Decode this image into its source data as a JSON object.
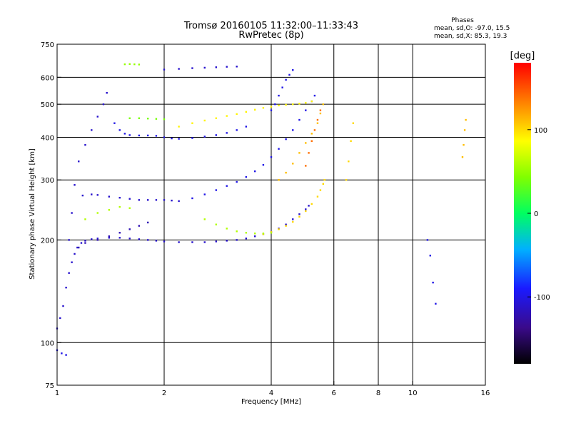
{
  "header": {
    "title_line1": "Tromsø 20160105 11:32:00–11:33:43",
    "title_line2": "RwPretec (8p)"
  },
  "stats": {
    "heading": "Phases",
    "line_o": "mean, sd,O: -97.0, 15.5",
    "line_x": "mean, sd,X:  85.3, 19.3"
  },
  "colorbar": {
    "label": "[deg]",
    "ticks": [
      {
        "value": 100,
        "label": "100"
      },
      {
        "value": 0,
        "label": "0"
      },
      {
        "value": -100,
        "label": "-100"
      }
    ],
    "range": [
      -180,
      180
    ]
  },
  "chart_data": {
    "type": "scatter",
    "title": "Tromsø 20160105 11:32:00–11:33:43",
    "subtitle": "RwPretec (8p)",
    "xlabel": "Frequency [MHz]",
    "ylabel": "Stationary phase Virtual Height [km]",
    "xscale": "log",
    "yscale": "log",
    "xlim": [
      1,
      16
    ],
    "ylim": [
      75,
      750
    ],
    "grid": true,
    "xticks": [
      {
        "value": 1,
        "label": "1"
      },
      {
        "value": 2,
        "label": "2"
      },
      {
        "value": 4,
        "label": "4"
      },
      {
        "value": 6,
        "label": "6"
      },
      {
        "value": 8,
        "label": "8"
      },
      {
        "value": 10,
        "label": "10"
      },
      {
        "value": 16,
        "label": "16"
      }
    ],
    "yticks": [
      {
        "value": 75,
        "label": "75"
      },
      {
        "value": 100,
        "label": "100"
      },
      {
        "value": 200,
        "label": "200"
      },
      {
        "value": 300,
        "label": "300"
      },
      {
        "value": 400,
        "label": "400"
      },
      {
        "value": 500,
        "label": "500"
      },
      {
        "value": 600,
        "label": "600"
      },
      {
        "value": 750,
        "label": "750"
      }
    ],
    "xgrid": [
      1,
      2,
      4,
      6,
      8,
      10
    ],
    "ygrid": [
      100,
      200,
      300,
      400,
      500,
      600
    ],
    "color_variable": "phase [deg]",
    "traces": [
      {
        "phase": -110,
        "points": [
          [
            1.0,
            110
          ],
          [
            1.02,
            118
          ],
          [
            1.04,
            128
          ],
          [
            1.06,
            145
          ],
          [
            1.08,
            160
          ],
          [
            1.1,
            172
          ],
          [
            1.12,
            182
          ],
          [
            1.14,
            190
          ],
          [
            1.17,
            196
          ],
          [
            1.2,
            199
          ],
          [
            1.25,
            201
          ],
          [
            1.3,
            202
          ],
          [
            1.4,
            203
          ],
          [
            1.5,
            203
          ],
          [
            1.6,
            202
          ],
          [
            1.7,
            201
          ],
          [
            1.8,
            200
          ],
          [
            1.9,
            199
          ],
          [
            2.0,
            198
          ],
          [
            2.2,
            197
          ],
          [
            2.4,
            197
          ],
          [
            2.6,
            197
          ],
          [
            2.8,
            198
          ],
          [
            3.0,
            199
          ],
          [
            3.2,
            200
          ],
          [
            3.4,
            202
          ],
          [
            3.6,
            205
          ],
          [
            3.8,
            208
          ],
          [
            4.0,
            211
          ],
          [
            4.2,
            216
          ],
          [
            4.4,
            222
          ],
          [
            4.6,
            230
          ],
          [
            4.8,
            238
          ],
          [
            5.0,
            246
          ],
          [
            5.1,
            252
          ]
        ]
      },
      {
        "phase": 100,
        "points": [
          [
            3.8,
            208
          ],
          [
            4.0,
            211
          ],
          [
            4.2,
            215
          ],
          [
            4.4,
            220
          ],
          [
            4.6,
            226
          ],
          [
            4.8,
            234
          ],
          [
            5.0,
            243
          ],
          [
            5.2,
            255
          ],
          [
            5.4,
            268
          ],
          [
            5.5,
            280
          ],
          [
            5.6,
            292
          ],
          [
            5.65,
            300
          ]
        ]
      },
      {
        "phase": 60,
        "points": [
          [
            2.6,
            230
          ],
          [
            2.8,
            222
          ],
          [
            3.0,
            216
          ],
          [
            3.2,
            212
          ],
          [
            3.4,
            210
          ],
          [
            3.6,
            209
          ],
          [
            3.8,
            209
          ],
          [
            4.0,
            210
          ]
        ]
      },
      {
        "phase": -100,
        "points": [
          [
            2.4,
            265
          ],
          [
            2.6,
            272
          ],
          [
            2.8,
            280
          ],
          [
            3.0,
            288
          ],
          [
            3.2,
            296
          ],
          [
            3.4,
            306
          ],
          [
            3.6,
            318
          ],
          [
            3.8,
            332
          ],
          [
            4.0,
            350
          ],
          [
            4.2,
            370
          ],
          [
            4.4,
            395
          ],
          [
            4.6,
            420
          ],
          [
            4.8,
            450
          ],
          [
            5.0,
            480
          ],
          [
            5.2,
            510
          ],
          [
            5.3,
            530
          ]
        ]
      },
      {
        "phase": -100,
        "points": [
          [
            4.0,
            480
          ],
          [
            4.1,
            500
          ],
          [
            4.2,
            530
          ],
          [
            4.3,
            560
          ],
          [
            4.4,
            590
          ],
          [
            4.5,
            610
          ],
          [
            4.6,
            630
          ]
        ]
      },
      {
        "phase": 110,
        "points": [
          [
            4.2,
            300
          ],
          [
            4.4,
            315
          ],
          [
            4.6,
            335
          ],
          [
            4.8,
            360
          ],
          [
            5.0,
            385
          ],
          [
            5.2,
            410
          ],
          [
            5.4,
            440
          ],
          [
            5.5,
            470
          ],
          [
            5.6,
            500
          ]
        ]
      },
      {
        "phase": 140,
        "points": [
          [
            5.0,
            330
          ],
          [
            5.1,
            360
          ],
          [
            5.2,
            390
          ],
          [
            5.3,
            420
          ],
          [
            5.4,
            450
          ],
          [
            5.5,
            480
          ]
        ]
      },
      {
        "phase": 90,
        "points": [
          [
            2.2,
            430
          ],
          [
            2.4,
            440
          ],
          [
            2.6,
            448
          ],
          [
            2.8,
            455
          ],
          [
            3.0,
            462
          ],
          [
            3.2,
            468
          ],
          [
            3.4,
            475
          ],
          [
            3.6,
            482
          ],
          [
            3.8,
            488
          ],
          [
            4.0,
            492
          ],
          [
            4.2,
            496
          ],
          [
            4.4,
            498
          ],
          [
            4.6,
            500
          ],
          [
            4.8,
            502
          ],
          [
            5.0,
            505
          ],
          [
            5.2,
            510
          ]
        ]
      },
      {
        "phase": -100,
        "points": [
          [
            1.45,
            440
          ],
          [
            1.5,
            420
          ],
          [
            1.55,
            410
          ],
          [
            1.6,
            406
          ],
          [
            1.7,
            405
          ],
          [
            1.8,
            405
          ],
          [
            1.9,
            404
          ],
          [
            2.0,
            400
          ],
          [
            2.1,
            397
          ],
          [
            2.2,
            396
          ],
          [
            2.4,
            398
          ],
          [
            2.6,
            402
          ],
          [
            2.8,
            406
          ],
          [
            3.0,
            412
          ],
          [
            3.2,
            420
          ],
          [
            3.4,
            430
          ]
        ]
      },
      {
        "phase": 40,
        "points": [
          [
            1.6,
            455
          ],
          [
            1.7,
            455
          ],
          [
            1.8,
            454
          ],
          [
            1.9,
            453
          ],
          [
            2.0,
            452
          ]
        ]
      },
      {
        "phase": -110,
        "points": [
          [
            2.0,
            632
          ],
          [
            2.2,
            635
          ],
          [
            2.4,
            638
          ],
          [
            2.6,
            640
          ],
          [
            2.8,
            642
          ],
          [
            3.0,
            644
          ],
          [
            3.2,
            645
          ]
        ]
      },
      {
        "phase": -110,
        "points": [
          [
            1.08,
            200
          ],
          [
            1.1,
            240
          ],
          [
            1.12,
            290
          ],
          [
            1.15,
            340
          ],
          [
            1.2,
            380
          ],
          [
            1.25,
            420
          ],
          [
            1.3,
            460
          ],
          [
            1.35,
            500
          ],
          [
            1.38,
            540
          ]
        ]
      },
      {
        "phase": -110,
        "points": [
          [
            1.18,
            270
          ],
          [
            1.25,
            272
          ],
          [
            1.3,
            271
          ],
          [
            1.4,
            268
          ],
          [
            1.5,
            266
          ],
          [
            1.6,
            264
          ],
          [
            1.7,
            262
          ],
          [
            1.8,
            262
          ],
          [
            1.9,
            262
          ],
          [
            2.0,
            262
          ],
          [
            2.1,
            261
          ],
          [
            2.2,
            260
          ]
        ]
      },
      {
        "phase": 60,
        "points": [
          [
            1.2,
            230
          ],
          [
            1.3,
            240
          ],
          [
            1.4,
            245
          ],
          [
            1.5,
            250
          ],
          [
            1.6,
            248
          ]
        ]
      },
      {
        "phase": -120,
        "points": [
          [
            1.15,
            190
          ],
          [
            1.2,
            196
          ],
          [
            1.3,
            200
          ],
          [
            1.4,
            205
          ],
          [
            1.5,
            210
          ],
          [
            1.6,
            215
          ],
          [
            1.7,
            220
          ],
          [
            1.8,
            225
          ]
        ]
      },
      {
        "phase": 50,
        "points": [
          [
            1.55,
            655
          ],
          [
            1.6,
            656
          ],
          [
            1.65,
            655
          ],
          [
            1.7,
            654
          ]
        ]
      },
      {
        "phase": -100,
        "points": [
          [
            1.0,
            95
          ],
          [
            1.03,
            93
          ],
          [
            1.06,
            92
          ]
        ]
      },
      {
        "phase": 100,
        "points": [
          [
            6.5,
            300
          ],
          [
            6.6,
            340
          ],
          [
            6.7,
            390
          ],
          [
            6.8,
            440
          ]
        ]
      },
      {
        "phase": -100,
        "points": [
          [
            11.0,
            200
          ],
          [
            11.2,
            180
          ],
          [
            11.4,
            150
          ],
          [
            11.6,
            130
          ]
        ]
      },
      {
        "phase": 110,
        "points": [
          [
            13.8,
            350
          ],
          [
            13.9,
            380
          ],
          [
            14.0,
            420
          ],
          [
            14.1,
            450
          ]
        ]
      }
    ]
  }
}
